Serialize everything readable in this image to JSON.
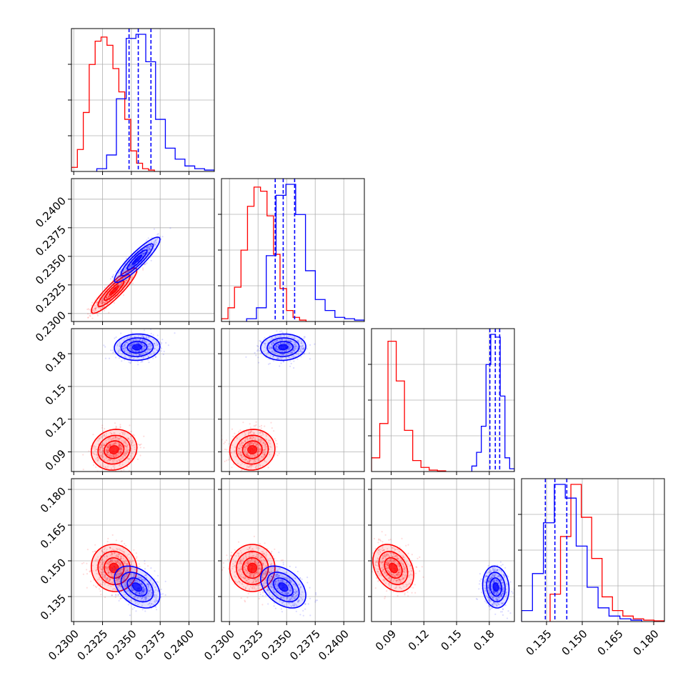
{
  "chart_data": {
    "type": "corner",
    "parameters": [
      {
        "ticks": [
          0.23,
          0.2325,
          0.235,
          0.2375,
          0.24
        ],
        "tick_labels": [
          "0.2300",
          "0.2325",
          "0.2350",
          "0.2375",
          "0.2400"
        ],
        "range": [
          0.2298,
          0.2422
        ]
      },
      {
        "ticks": [
          0.23,
          0.2325,
          0.235,
          0.2375,
          0.24
        ],
        "tick_labels": [
          "0.2300",
          "0.2325",
          "0.2350",
          "0.2375",
          "0.2400"
        ],
        "range": [
          0.2293,
          0.2418
        ]
      },
      {
        "ticks": [
          0.09,
          0.12,
          0.15,
          0.18
        ],
        "tick_labels": [
          "0.09",
          "0.12",
          "0.15",
          "0.18"
        ],
        "range": [
          0.072,
          0.203
        ]
      },
      {
        "ticks": [
          0.135,
          0.15,
          0.165,
          0.18
        ],
        "tick_labels": [
          "0.135",
          "0.150",
          "0.165",
          "0.180"
        ],
        "range": [
          0.1245,
          0.1845
        ]
      }
    ],
    "series": [
      {
        "color": "#ff0000",
        "means": [
          0.2335,
          0.232,
          0.092,
          0.147
        ],
        "stds": [
          0.0009,
          0.0009,
          0.0085,
          0.0045
        ],
        "correlations": {
          "1-0": 0.9,
          "2-0": 0.1,
          "2-1": 0.05,
          "3-0": -0.05,
          "3-1": 0.0,
          "3-2": -0.3
        },
        "histograms": [
          {
            "range": [
              0.2298,
              0.237
            ],
            "counts": [
              0.03,
              0.16,
              0.43,
              0.78,
              0.95,
              0.98,
              0.92,
              0.75,
              0.58,
              0.38,
              0.15,
              0.06,
              0.02,
              0.01
            ]
          },
          {
            "range": [
              0.2293,
              0.2367
            ],
            "counts": [
              0.02,
              0.1,
              0.25,
              0.52,
              0.84,
              0.98,
              0.95,
              0.77,
              0.49,
              0.24,
              0.08,
              0.03,
              0.01
            ]
          },
          {
            "range": [
              0.072,
              0.14
            ],
            "counts": [
              0.1,
              0.35,
              0.95,
              0.66,
              0.3,
              0.08,
              0.03,
              0.01,
              0.005
            ]
          },
          {
            "range": [
              0.1365,
              0.1845
            ],
            "counts": [
              0.2,
              0.62,
              1.0,
              0.76,
              0.46,
              0.18,
              0.08,
              0.04,
              0.02,
              0.01,
              0.005
            ]
          }
        ],
        "quantiles": []
      },
      {
        "color": "#0000ff",
        "means": [
          0.2355,
          0.2347,
          0.186,
          0.139
        ],
        "stds": [
          0.0009,
          0.0009,
          0.0055,
          0.004
        ],
        "correlations": {
          "1-0": 0.9,
          "2-0": 0.05,
          "2-1": 0.05,
          "3-0": -0.4,
          "3-1": -0.4,
          "3-2": -0.1
        },
        "histograms": [
          {
            "range": [
              0.232,
              0.2422
            ],
            "counts": [
              0.02,
              0.12,
              0.53,
              0.97,
              1.0,
              0.8,
              0.38,
              0.17,
              0.09,
              0.04,
              0.02,
              0.01
            ]
          },
          {
            "range": [
              0.2315,
              0.2418
            ],
            "counts": [
              0.02,
              0.1,
              0.48,
              0.92,
              1.0,
              0.78,
              0.37,
              0.16,
              0.08,
              0.03,
              0.02,
              0.01
            ]
          },
          {
            "range": [
              0.164,
              0.203
            ],
            "counts": [
              0.04,
              0.14,
              0.33,
              0.78,
              1.0,
              0.98,
              0.55,
              0.1,
              0.02
            ]
          },
          {
            "range": [
              0.1245,
              0.175
            ],
            "counts": [
              0.08,
              0.35,
              0.72,
              1.0,
              0.9,
              0.55,
              0.25,
              0.1,
              0.04,
              0.02,
              0.01
            ]
          }
        ],
        "quantiles": [
          [
            0.2348,
            0.2356,
            0.2367
          ],
          [
            0.234,
            0.2347,
            0.2357
          ],
          [
            0.1805,
            0.1855,
            0.1895
          ],
          [
            0.1345,
            0.1385,
            0.1435
          ]
        ]
      }
    ]
  }
}
